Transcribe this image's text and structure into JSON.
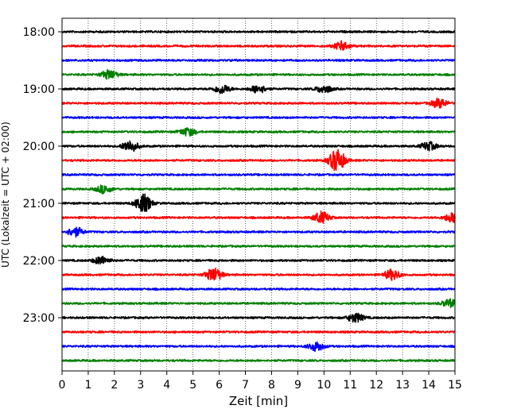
{
  "chart_data": {
    "type": "line",
    "title": "",
    "xlabel": "Zeit  [min]",
    "ylabel": "UTC (Lokalzeit = UTC + 02:00)",
    "xlim": [
      0,
      15
    ],
    "x_ticks": [
      "0",
      "1",
      "2",
      "3",
      "4",
      "5",
      "6",
      "7",
      "8",
      "9",
      "10",
      "11",
      "12",
      "13",
      "14",
      "15"
    ],
    "y_tick_labels": [
      "18:00",
      "19:00",
      "20:00",
      "21:00",
      "22:00",
      "23:00"
    ],
    "vertical_grid": true,
    "grid_style": "dotted",
    "trace_interval_minutes": 15,
    "trace_colors": [
      "#000000",
      "#ff0000",
      "#0000ff",
      "#008000"
    ],
    "traces": [
      {
        "start": "18:00",
        "color": "#000000",
        "events": []
      },
      {
        "start": "18:15",
        "color": "#ff0000",
        "events": [
          {
            "minute": 10.7,
            "amplitude": 0.4
          }
        ]
      },
      {
        "start": "18:30",
        "color": "#0000ff",
        "events": []
      },
      {
        "start": "18:45",
        "color": "#008000",
        "events": [
          {
            "minute": 1.8,
            "amplitude": 0.4
          }
        ]
      },
      {
        "start": "19:00",
        "color": "#000000",
        "events": [
          {
            "minute": 6.1,
            "amplitude": 0.4
          },
          {
            "minute": 7.5,
            "amplitude": 0.35
          },
          {
            "minute": 10.0,
            "amplitude": 0.35
          }
        ]
      },
      {
        "start": "19:15",
        "color": "#ff0000",
        "events": [
          {
            "minute": 14.4,
            "amplitude": 0.4
          }
        ]
      },
      {
        "start": "19:30",
        "color": "#0000ff",
        "events": []
      },
      {
        "start": "19:45",
        "color": "#008000",
        "events": [
          {
            "minute": 4.8,
            "amplitude": 0.35
          }
        ]
      },
      {
        "start": "20:00",
        "color": "#000000",
        "events": [
          {
            "minute": 2.6,
            "amplitude": 0.5
          },
          {
            "minute": 14.0,
            "amplitude": 0.35
          }
        ]
      },
      {
        "start": "20:15",
        "color": "#ff0000",
        "events": [
          {
            "minute": 10.5,
            "amplitude": 1.0
          }
        ]
      },
      {
        "start": "20:30",
        "color": "#0000ff",
        "events": []
      },
      {
        "start": "20:45",
        "color": "#008000",
        "events": [
          {
            "minute": 1.6,
            "amplitude": 0.35
          }
        ]
      },
      {
        "start": "21:00",
        "color": "#000000",
        "events": [
          {
            "minute": 3.1,
            "amplitude": 0.8
          }
        ]
      },
      {
        "start": "21:15",
        "color": "#ff0000",
        "events": [
          {
            "minute": 9.9,
            "amplitude": 0.5
          },
          {
            "minute": 14.9,
            "amplitude": 0.4
          }
        ]
      },
      {
        "start": "21:30",
        "color": "#0000ff",
        "events": [
          {
            "minute": 0.5,
            "amplitude": 0.4
          }
        ]
      },
      {
        "start": "21:45",
        "color": "#008000",
        "events": []
      },
      {
        "start": "22:00",
        "color": "#000000",
        "events": [
          {
            "minute": 1.5,
            "amplitude": 0.35
          }
        ]
      },
      {
        "start": "22:15",
        "color": "#ff0000",
        "events": [
          {
            "minute": 5.8,
            "amplitude": 0.6
          },
          {
            "minute": 12.6,
            "amplitude": 0.45
          }
        ]
      },
      {
        "start": "22:30",
        "color": "#0000ff",
        "events": []
      },
      {
        "start": "22:45",
        "color": "#008000",
        "events": [
          {
            "minute": 14.8,
            "amplitude": 0.35
          }
        ]
      },
      {
        "start": "23:00",
        "color": "#000000",
        "events": [
          {
            "minute": 11.2,
            "amplitude": 0.4
          }
        ]
      },
      {
        "start": "23:15",
        "color": "#ff0000",
        "events": []
      },
      {
        "start": "23:30",
        "color": "#0000ff",
        "events": [
          {
            "minute": 9.7,
            "amplitude": 0.4
          }
        ]
      },
      {
        "start": "23:45",
        "color": "#008000",
        "events": []
      }
    ]
  }
}
